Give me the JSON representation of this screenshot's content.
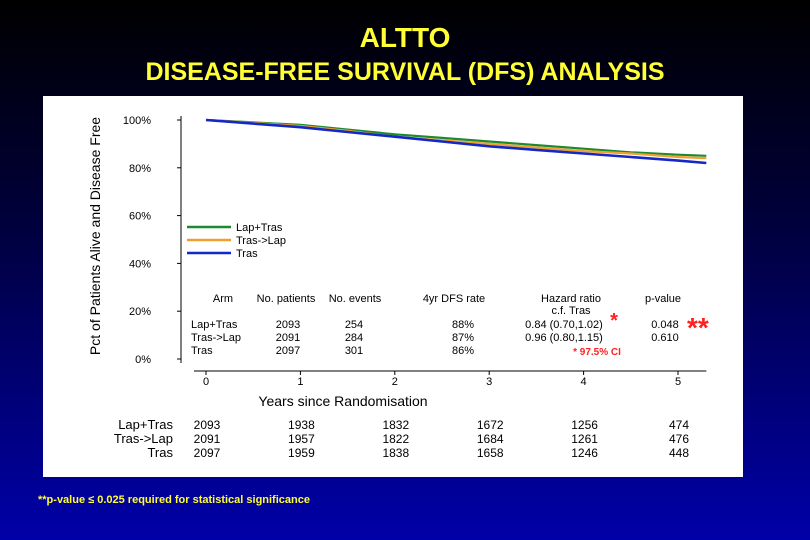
{
  "slide": {
    "title": "ALTTO",
    "subtitle": "DISEASE-FREE SURVIVAL (DFS) ANALYSIS",
    "footnote": "**p-value ≤ 0.025 required for statistical significance",
    "significance_marker": "**"
  },
  "colors": {
    "Lap+Tras": "#1e8a2e",
    "Tras->Lap": "#f0a030",
    "Tras": "#1428c8",
    "background_top": "#000000",
    "background_bottom": "#0000a8",
    "title": "#ffff33",
    "note_red": "#ff2020"
  },
  "chart_data": {
    "type": "line",
    "ylabel": "Pct of Patients Alive and Disease Free",
    "xlabel": "Years since Randomisation",
    "xlim": [
      0,
      5.3
    ],
    "ylim": [
      0,
      100
    ],
    "x_ticks": [
      "0",
      "1",
      "2",
      "3",
      "4",
      "5"
    ],
    "y_ticks": [
      "0%",
      "20%",
      "40%",
      "60%",
      "80%",
      "100%"
    ],
    "grid": false,
    "legend_placement": "middle-left",
    "series": [
      {
        "name": "Lap+Tras",
        "points": [
          [
            0,
            100
          ],
          [
            0.5,
            99
          ],
          [
            1,
            98
          ],
          [
            1.5,
            96
          ],
          [
            2,
            94
          ],
          [
            2.5,
            92.5
          ],
          [
            3,
            91
          ],
          [
            3.5,
            89.5
          ],
          [
            4,
            88
          ],
          [
            4.5,
            86.5
          ],
          [
            5,
            85.5
          ],
          [
            5.3,
            85
          ]
        ]
      },
      {
        "name": "Tras->Lap",
        "points": [
          [
            0,
            100
          ],
          [
            0.5,
            98.8
          ],
          [
            1,
            97.5
          ],
          [
            1.5,
            95.5
          ],
          [
            2,
            93
          ],
          [
            2.5,
            91.5
          ],
          [
            3,
            90
          ],
          [
            3.5,
            88.5
          ],
          [
            4,
            87
          ],
          [
            4.5,
            86
          ],
          [
            5,
            84.5
          ],
          [
            5.3,
            84
          ]
        ]
      },
      {
        "name": "Tras",
        "points": [
          [
            0,
            100
          ],
          [
            0.5,
            98.5
          ],
          [
            1,
            97
          ],
          [
            1.5,
            95
          ],
          [
            2,
            93
          ],
          [
            2.5,
            91
          ],
          [
            3,
            89
          ],
          [
            3.5,
            87.5
          ],
          [
            4,
            86
          ],
          [
            4.5,
            84.5
          ],
          [
            5,
            83
          ],
          [
            5.3,
            82
          ]
        ]
      }
    ],
    "legend": [
      "Lap+Tras",
      "Tras->Lap",
      "Tras"
    ],
    "stats_table": {
      "headers": [
        "Arm",
        "No. patients",
        "No. events",
        "4yr DFS rate",
        "Hazard ratio",
        "p-value"
      ],
      "hazard_subheader": "c.f. Tras",
      "rows": [
        [
          "Lap+Tras",
          "2093",
          "254",
          "88%",
          "0.84 (0.70,1.02)",
          "0.048"
        ],
        [
          "Tras->Lap",
          "2091",
          "284",
          "87%",
          "0.96 (0.80,1.15)",
          "0.610"
        ],
        [
          "Tras",
          "2097",
          "301",
          "86%",
          "",
          ""
        ]
      ],
      "ci_note": "* 97.5% CI",
      "star": "*"
    },
    "at_risk": {
      "arms": [
        "Lap+Tras",
        "Tras->Lap",
        "Tras"
      ],
      "counts": [
        [
          "2093",
          "1938",
          "1832",
          "1672",
          "1256",
          "474"
        ],
        [
          "2091",
          "1957",
          "1822",
          "1684",
          "1261",
          "476"
        ],
        [
          "2097",
          "1959",
          "1838",
          "1658",
          "1246",
          "448"
        ]
      ]
    }
  }
}
